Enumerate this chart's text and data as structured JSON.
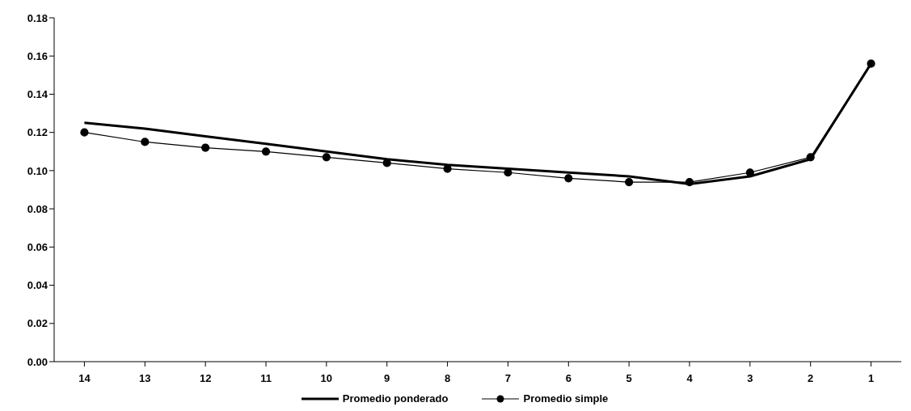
{
  "chart_data": {
    "type": "line",
    "categories": [
      "14",
      "13",
      "12",
      "11",
      "10",
      "9",
      "8",
      "7",
      "6",
      "5",
      "4",
      "3",
      "2",
      "1"
    ],
    "series": [
      {
        "name": "Promedio ponderado",
        "color": "#000000",
        "marker": "none",
        "values": [
          0.125,
          0.122,
          0.118,
          0.114,
          0.11,
          0.106,
          0.103,
          0.101,
          0.099,
          0.097,
          0.093,
          0.097,
          0.106,
          0.156
        ]
      },
      {
        "name": "Promedio simple",
        "color": "#000000",
        "marker": "circle",
        "values": [
          0.12,
          0.115,
          0.112,
          0.11,
          0.107,
          0.104,
          0.101,
          0.099,
          0.096,
          0.094,
          0.094,
          0.099,
          0.107,
          0.156
        ]
      }
    ],
    "ylim": [
      0,
      0.18
    ],
    "yticks": [
      {
        "value": 0,
        "label": "0.00"
      },
      0.02,
      0.04,
      0.06,
      0.08,
      {
        "value": 0.1,
        "label": "0.10"
      },
      0.12,
      0.14,
      0.16,
      0.18
    ],
    "legend": "bottom"
  }
}
